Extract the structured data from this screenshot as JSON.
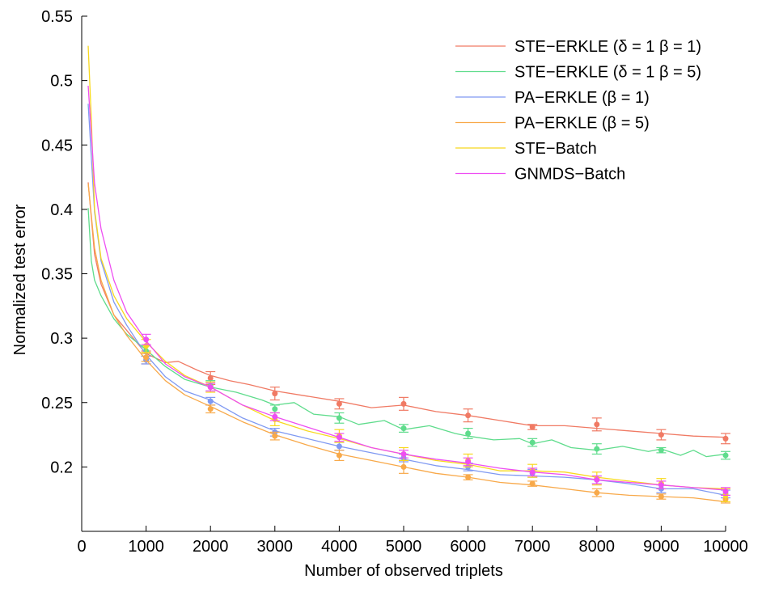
{
  "chart_data": {
    "type": "line",
    "title": "",
    "xlabel": "Number of observed triplets",
    "ylabel": "Normalized test error",
    "xlim": [
      0,
      10000
    ],
    "ylim": [
      0.15,
      0.55
    ],
    "xticks": [
      0,
      1000,
      2000,
      3000,
      4000,
      5000,
      6000,
      7000,
      8000,
      9000,
      10000
    ],
    "xtick_labels": [
      "0",
      "1000",
      "2000",
      "3000",
      "4000",
      "5000",
      "6000",
      "7000",
      "8000",
      "9000",
      "10000"
    ],
    "yticks": [
      0.2,
      0.25,
      0.3,
      0.35,
      0.4,
      0.45,
      0.5,
      0.55
    ],
    "ytick_labels": [
      "0.2",
      "0.25",
      "0.3",
      "0.35",
      "0.4",
      "0.45",
      "0.5",
      "0.55"
    ],
    "legend_position": "top-right",
    "grid": false,
    "series": [
      {
        "name": "STE−ERKLE (δ = 1 β = 1)",
        "color": "#f07a64",
        "x": [
          100,
          200,
          300,
          500,
          700,
          1000,
          1300,
          1500,
          1800,
          2000,
          2300,
          2600,
          3000,
          3500,
          4000,
          4500,
          5000,
          5500,
          6000,
          6500,
          7000,
          7500,
          8000,
          8500,
          9000,
          9500,
          10000
        ],
        "y": [
          0.421,
          0.365,
          0.342,
          0.318,
          0.306,
          0.288,
          0.281,
          0.282,
          0.275,
          0.271,
          0.267,
          0.264,
          0.259,
          0.255,
          0.251,
          0.246,
          0.248,
          0.243,
          0.24,
          0.236,
          0.232,
          0.232,
          0.23,
          0.228,
          0.226,
          0.224,
          0.223
        ],
        "markers": [
          {
            "x": 1000,
            "y": 0.285,
            "err": 0.005
          },
          {
            "x": 2000,
            "y": 0.269,
            "err": 0.005
          },
          {
            "x": 3000,
            "y": 0.257,
            "err": 0.005
          },
          {
            "x": 4000,
            "y": 0.249,
            "err": 0.004
          },
          {
            "x": 5000,
            "y": 0.249,
            "err": 0.005
          },
          {
            "x": 6000,
            "y": 0.24,
            "err": 0.005
          },
          {
            "x": 7000,
            "y": 0.231,
            "err": 0.002
          },
          {
            "x": 8000,
            "y": 0.233,
            "err": 0.005
          },
          {
            "x": 9000,
            "y": 0.225,
            "err": 0.004
          },
          {
            "x": 10000,
            "y": 0.222,
            "err": 0.004
          }
        ]
      },
      {
        "name": "STE−ERKLE (δ = 1 β = 5)",
        "color": "#5fdc8c",
        "x": [
          100,
          150,
          200,
          300,
          500,
          700,
          1000,
          1300,
          1600,
          2000,
          2400,
          2800,
          3000,
          3300,
          3600,
          4000,
          4300,
          4700,
          5000,
          5400,
          5800,
          6000,
          6400,
          6800,
          7000,
          7300,
          7600,
          8000,
          8400,
          8800,
          9000,
          9300,
          9500,
          9700,
          10000
        ],
        "y": [
          0.401,
          0.36,
          0.345,
          0.333,
          0.315,
          0.303,
          0.291,
          0.278,
          0.268,
          0.262,
          0.258,
          0.252,
          0.248,
          0.25,
          0.241,
          0.239,
          0.233,
          0.236,
          0.229,
          0.232,
          0.226,
          0.224,
          0.221,
          0.222,
          0.218,
          0.221,
          0.215,
          0.213,
          0.216,
          0.212,
          0.214,
          0.209,
          0.213,
          0.208,
          0.21
        ],
        "markers": [
          {
            "x": 1000,
            "y": 0.29,
            "err": 0.004
          },
          {
            "x": 2000,
            "y": 0.263,
            "err": 0.004
          },
          {
            "x": 3000,
            "y": 0.245,
            "err": 0.003
          },
          {
            "x": 4000,
            "y": 0.238,
            "err": 0.004
          },
          {
            "x": 5000,
            "y": 0.23,
            "err": 0.003
          },
          {
            "x": 6000,
            "y": 0.226,
            "err": 0.004
          },
          {
            "x": 7000,
            "y": 0.219,
            "err": 0.003
          },
          {
            "x": 8000,
            "y": 0.214,
            "err": 0.004
          },
          {
            "x": 9000,
            "y": 0.213,
            "err": 0.002
          },
          {
            "x": 10000,
            "y": 0.209,
            "err": 0.003
          }
        ]
      },
      {
        "name": "PA−ERKLE (β = 1)",
        "color": "#7f99f2",
        "x": [
          100,
          200,
          300,
          500,
          700,
          1000,
          1300,
          1600,
          2000,
          2500,
          3000,
          3500,
          4000,
          4500,
          5000,
          5500,
          6000,
          6500,
          7000,
          7500,
          8000,
          8500,
          9000,
          9500,
          10000
        ],
        "y": [
          0.482,
          0.398,
          0.36,
          0.328,
          0.31,
          0.287,
          0.27,
          0.259,
          0.252,
          0.238,
          0.228,
          0.222,
          0.216,
          0.211,
          0.206,
          0.201,
          0.198,
          0.194,
          0.193,
          0.192,
          0.19,
          0.187,
          0.183,
          0.183,
          0.178
        ],
        "markers": [
          {
            "x": 1000,
            "y": 0.283,
            "err": 0.003
          },
          {
            "x": 2000,
            "y": 0.251,
            "err": 0.003
          },
          {
            "x": 3000,
            "y": 0.227,
            "err": 0.003
          },
          {
            "x": 4000,
            "y": 0.216,
            "err": 0.003
          },
          {
            "x": 5000,
            "y": 0.207,
            "err": 0.003
          },
          {
            "x": 6000,
            "y": 0.2,
            "err": 0.003
          },
          {
            "x": 7000,
            "y": 0.195,
            "err": 0.003
          },
          {
            "x": 8000,
            "y": 0.19,
            "err": 0.003
          },
          {
            "x": 9000,
            "y": 0.183,
            "err": 0.003
          },
          {
            "x": 10000,
            "y": 0.179,
            "err": 0.003
          }
        ]
      },
      {
        "name": "PA−ERKLE (β = 5)",
        "color": "#f8a94a",
        "x": [
          100,
          200,
          300,
          500,
          700,
          1000,
          1300,
          1600,
          2000,
          2500,
          3000,
          3500,
          4000,
          4500,
          5000,
          5500,
          6000,
          6500,
          7000,
          7500,
          8000,
          8500,
          9000,
          9500,
          10000
        ],
        "y": [
          0.42,
          0.37,
          0.345,
          0.318,
          0.302,
          0.283,
          0.267,
          0.256,
          0.247,
          0.235,
          0.225,
          0.217,
          0.21,
          0.205,
          0.2,
          0.195,
          0.192,
          0.188,
          0.186,
          0.183,
          0.18,
          0.178,
          0.177,
          0.176,
          0.173
        ],
        "markers": [
          {
            "x": 1000,
            "y": 0.285,
            "err": 0.003
          },
          {
            "x": 2000,
            "y": 0.245,
            "err": 0.003
          },
          {
            "x": 3000,
            "y": 0.224,
            "err": 0.003
          },
          {
            "x": 4000,
            "y": 0.209,
            "err": 0.004
          },
          {
            "x": 5000,
            "y": 0.2,
            "err": 0.005
          },
          {
            "x": 6000,
            "y": 0.192,
            "err": 0.002
          },
          {
            "x": 7000,
            "y": 0.187,
            "err": 0.002
          },
          {
            "x": 8000,
            "y": 0.18,
            "err": 0.003
          },
          {
            "x": 9000,
            "y": 0.177,
            "err": 0.002
          },
          {
            "x": 10000,
            "y": 0.175,
            "err": 0.003
          }
        ]
      },
      {
        "name": "STE−Batch",
        "color": "#f8d81e",
        "x": [
          100,
          150,
          200,
          300,
          500,
          700,
          1000,
          1300,
          1600,
          2000,
          2500,
          3000,
          3500,
          4000,
          4500,
          5000,
          5500,
          6000,
          6500,
          7000,
          7500,
          8000,
          8500,
          9000,
          9500,
          10000
        ],
        "y": [
          0.527,
          0.47,
          0.4,
          0.362,
          0.333,
          0.315,
          0.297,
          0.282,
          0.271,
          0.262,
          0.248,
          0.236,
          0.228,
          0.222,
          0.215,
          0.21,
          0.205,
          0.202,
          0.197,
          0.197,
          0.196,
          0.192,
          0.189,
          0.186,
          0.184,
          0.183
        ],
        "markers": [
          {
            "x": 1000,
            "y": 0.294,
            "err": 0.005
          },
          {
            "x": 2000,
            "y": 0.262,
            "err": 0.004
          },
          {
            "x": 3000,
            "y": 0.237,
            "err": 0.005
          },
          {
            "x": 4000,
            "y": 0.224,
            "err": 0.005
          },
          {
            "x": 5000,
            "y": 0.21,
            "err": 0.005
          },
          {
            "x": 6000,
            "y": 0.205,
            "err": 0.005
          },
          {
            "x": 7000,
            "y": 0.197,
            "err": 0.005
          },
          {
            "x": 8000,
            "y": 0.191,
            "err": 0.005
          },
          {
            "x": 9000,
            "y": 0.187,
            "err": 0.004
          },
          {
            "x": 10000,
            "y": 0.178,
            "err": 0.005
          }
        ]
      },
      {
        "name": "GNMDS−Batch",
        "color": "#ee4ef2",
        "x": [
          100,
          200,
          300,
          500,
          700,
          1000,
          1300,
          1600,
          2000,
          2500,
          3000,
          3500,
          4000,
          4500,
          5000,
          5500,
          6000,
          6500,
          7000,
          7500,
          8000,
          8500,
          9000,
          9500,
          10000
        ],
        "y": [
          0.496,
          0.42,
          0.385,
          0.345,
          0.32,
          0.298,
          0.28,
          0.27,
          0.262,
          0.248,
          0.239,
          0.231,
          0.223,
          0.215,
          0.21,
          0.206,
          0.203,
          0.199,
          0.196,
          0.194,
          0.19,
          0.188,
          0.186,
          0.184,
          0.182
        ],
        "markers": [
          {
            "x": 1000,
            "y": 0.299,
            "err": 0.004
          },
          {
            "x": 2000,
            "y": 0.262,
            "err": 0.003
          },
          {
            "x": 3000,
            "y": 0.239,
            "err": 0.003
          },
          {
            "x": 4000,
            "y": 0.223,
            "err": 0.003
          },
          {
            "x": 5000,
            "y": 0.21,
            "err": 0.003
          },
          {
            "x": 6000,
            "y": 0.204,
            "err": 0.003
          },
          {
            "x": 7000,
            "y": 0.196,
            "err": 0.003
          },
          {
            "x": 8000,
            "y": 0.19,
            "err": 0.003
          },
          {
            "x": 9000,
            "y": 0.186,
            "err": 0.003
          },
          {
            "x": 10000,
            "y": 0.181,
            "err": 0.003
          }
        ]
      }
    ]
  }
}
